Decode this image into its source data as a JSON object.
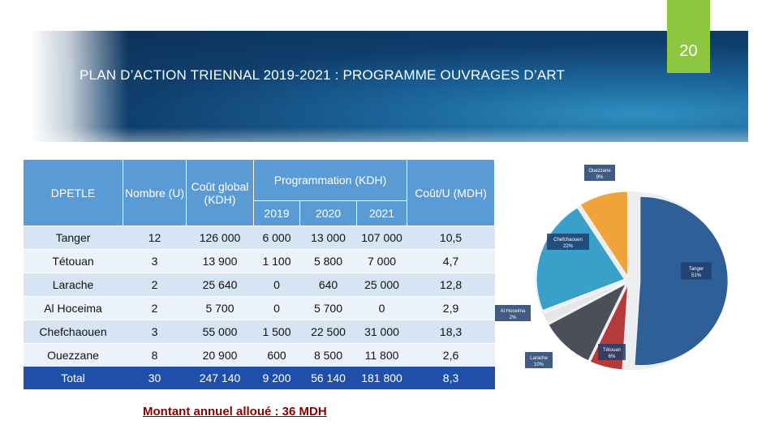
{
  "slide": {
    "page_number": "20",
    "title": "PLAN D’ACTION TRIENNAL 2019-2021 : PROGRAMME OUVRAGES D’ART"
  },
  "table": {
    "headers": {
      "dpetle": "DPETLE",
      "nombre": "Nombre (U)",
      "cout_global": "Coût global (KDH)",
      "programmation": "Programmation (KDH)",
      "y2019": "2019",
      "y2020": "2020",
      "y2021": "2021",
      "cout_u": "Coût/U (MDH)"
    },
    "rows": [
      {
        "dpetle": "Tanger",
        "nombre": "12",
        "cout_global": "126 000",
        "y2019": "6 000",
        "y2020": "13 000",
        "y2021": "107 000",
        "cout_u": "10,5"
      },
      {
        "dpetle": "Tétouan",
        "nombre": "3",
        "cout_global": "13 900",
        "y2019": "1 100",
        "y2020": "5 800",
        "y2021": "7 000",
        "cout_u": "4,7"
      },
      {
        "dpetle": "Larache",
        "nombre": "2",
        "cout_global": "25 640",
        "y2019": "0",
        "y2020": "640",
        "y2021": "25 000",
        "cout_u": "12,8"
      },
      {
        "dpetle": "Al Hoceima",
        "nombre": "2",
        "cout_global": "5 700",
        "y2019": "0",
        "y2020": "5 700",
        "y2021": "0",
        "cout_u": "2,9"
      },
      {
        "dpetle": "Chefchaouen",
        "nombre": "3",
        "cout_global": "55 000",
        "y2019": "1 500",
        "y2020": "22 500",
        "y2021": "31 000",
        "cout_u": "18,3"
      },
      {
        "dpetle": "Ouezzane",
        "nombre": "8",
        "cout_global": "20 900",
        "y2019": "600",
        "y2020": "8 500",
        "y2021": "11 800",
        "cout_u": "2,6"
      }
    ],
    "total": {
      "dpetle": "Total",
      "nombre": "30",
      "cout_global": "247 140",
      "y2019": "9 200",
      "y2020": "56 140",
      "y2021": "181 800",
      "cout_u": "8,3"
    }
  },
  "note": "Montant annuel alloué : 36 MDH",
  "pie": {
    "slices": [
      {
        "name": "Tanger",
        "pct": "51%",
        "value": 51,
        "color": "#2e5f96"
      },
      {
        "name": "Tétouan",
        "pct": "6%",
        "value": 6,
        "color": "#b53b3b"
      },
      {
        "name": "Larache",
        "pct": "10%",
        "value": 10,
        "color": "#4b4f57"
      },
      {
        "name": "Al Hoceima",
        "pct": "2%",
        "value": 2,
        "color": "#e6e6e6"
      },
      {
        "name": "Chefchaouen",
        "pct": "22%",
        "value": 22,
        "color": "#3aa0c9"
      },
      {
        "name": "Ouezzane",
        "pct": "9%",
        "value": 9,
        "color": "#f0a23b"
      }
    ]
  }
}
